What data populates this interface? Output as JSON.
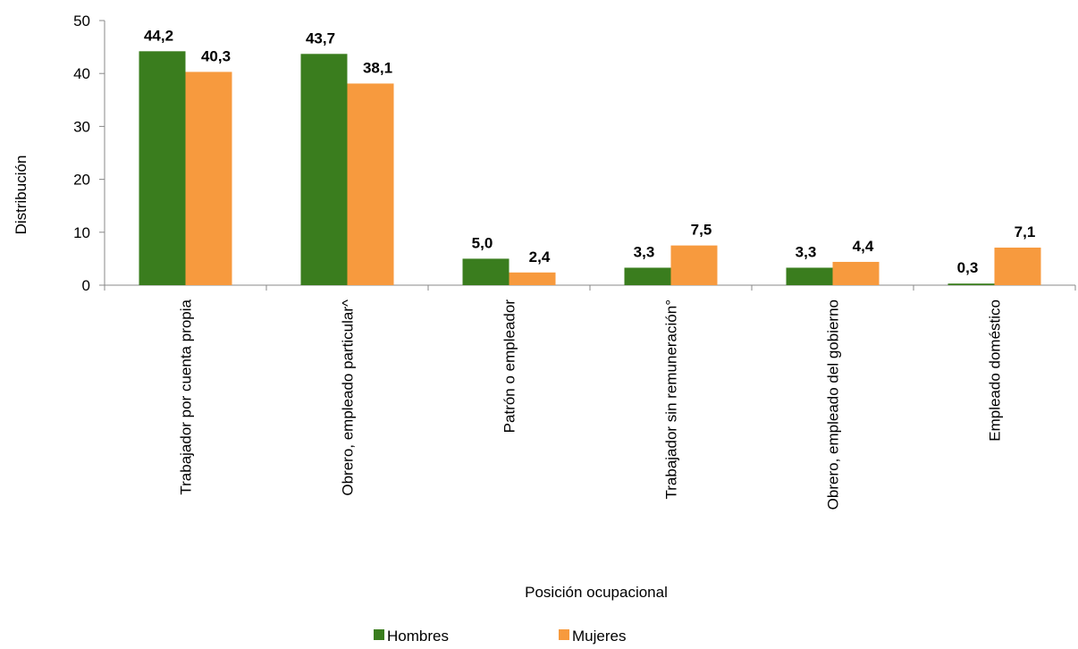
{
  "chart_data": {
    "type": "bar",
    "xlabel": "Posición ocupacional",
    "ylabel": "Distribución",
    "ylim": [
      0,
      50
    ],
    "yticks": [
      0,
      10,
      20,
      30,
      40,
      50
    ],
    "grid": false,
    "legend_position": "bottom",
    "categories": [
      "Trabajador por cuenta propia",
      "Obrero, empleado particular^",
      "Patrón o empleador",
      "Trabajador sin remuneración°",
      "Obrero, empleado del gobierno",
      "Empleado doméstico"
    ],
    "series": [
      {
        "name": "Hombres",
        "color": "#3a7d1e",
        "values": [
          44.2,
          43.7,
          5.0,
          3.3,
          3.3,
          0.3
        ],
        "labels": [
          "44,2",
          "43,7",
          "5,0",
          "3,3",
          "3,3",
          "0,3"
        ]
      },
      {
        "name": "Mujeres",
        "color": "#f79a3e",
        "values": [
          40.3,
          38.1,
          2.4,
          7.5,
          4.4,
          7.1
        ],
        "labels": [
          "40,3",
          "38,1",
          "2,4",
          "7,5",
          "4,4",
          "7,1"
        ]
      }
    ]
  }
}
